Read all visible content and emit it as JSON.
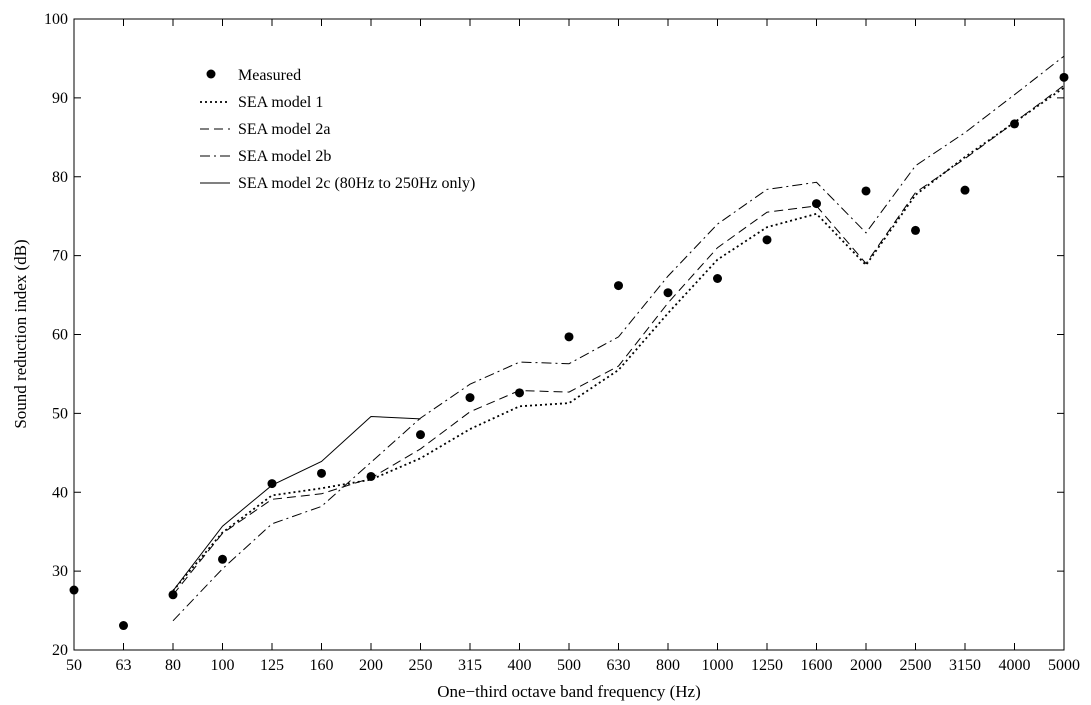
{
  "chart_data": {
    "type": "line",
    "title": "",
    "xlabel": "One−third octave band frequency (Hz)",
    "ylabel": "Sound reduction index (dB)",
    "categories": [
      "50",
      "63",
      "80",
      "100",
      "125",
      "160",
      "200",
      "250",
      "315",
      "400",
      "500",
      "630",
      "800",
      "1000",
      "1250",
      "1600",
      "2000",
      "2500",
      "3150",
      "4000",
      "5000"
    ],
    "ylim": [
      20,
      100
    ],
    "yticks": [
      20,
      30,
      40,
      50,
      60,
      70,
      80,
      90,
      100
    ],
    "grid": false,
    "legend_position": "top-left",
    "series": [
      {
        "name": "Measured",
        "style": "markers",
        "values": [
          27.6,
          23.1,
          27.0,
          31.5,
          41.1,
          42.4,
          42.0,
          47.3,
          52.0,
          52.6,
          59.7,
          66.2,
          65.3,
          67.1,
          72.0,
          76.6,
          78.2,
          73.2,
          78.3,
          86.7,
          92.6
        ]
      },
      {
        "name": "SEA model 1",
        "style": "dotted",
        "values": [
          null,
          null,
          27.5,
          34.9,
          39.6,
          40.5,
          41.6,
          44.3,
          48.0,
          50.9,
          51.3,
          55.5,
          62.7,
          69.5,
          73.6,
          75.3,
          68.8,
          77.7,
          82.5,
          86.9,
          91.3
        ]
      },
      {
        "name": "SEA model 2a",
        "style": "dashed",
        "values": [
          null,
          null,
          27.0,
          34.8,
          39.1,
          39.8,
          41.8,
          45.5,
          50.2,
          52.9,
          52.7,
          56.0,
          64.0,
          71.0,
          75.5,
          76.3,
          69.0,
          78.0,
          82.3,
          86.9,
          91.6
        ]
      },
      {
        "name": "SEA model 2b",
        "style": "dashdot",
        "values": [
          null,
          null,
          23.7,
          30.3,
          36.0,
          38.2,
          43.8,
          49.4,
          53.7,
          56.5,
          56.3,
          59.7,
          67.4,
          74.0,
          78.4,
          79.3,
          72.9,
          81.4,
          85.6,
          90.4,
          95.3
        ]
      },
      {
        "name": "SEA model 2c (80Hz to 250Hz only)",
        "style": "solid",
        "values": [
          null,
          null,
          27.5,
          35.7,
          40.9,
          43.9,
          49.6,
          49.3,
          null,
          null,
          null,
          null,
          null,
          null,
          null,
          null,
          null,
          null,
          null,
          null,
          null
        ]
      }
    ],
    "colors": {
      "line": "#000000",
      "background": "#ffffff"
    }
  }
}
